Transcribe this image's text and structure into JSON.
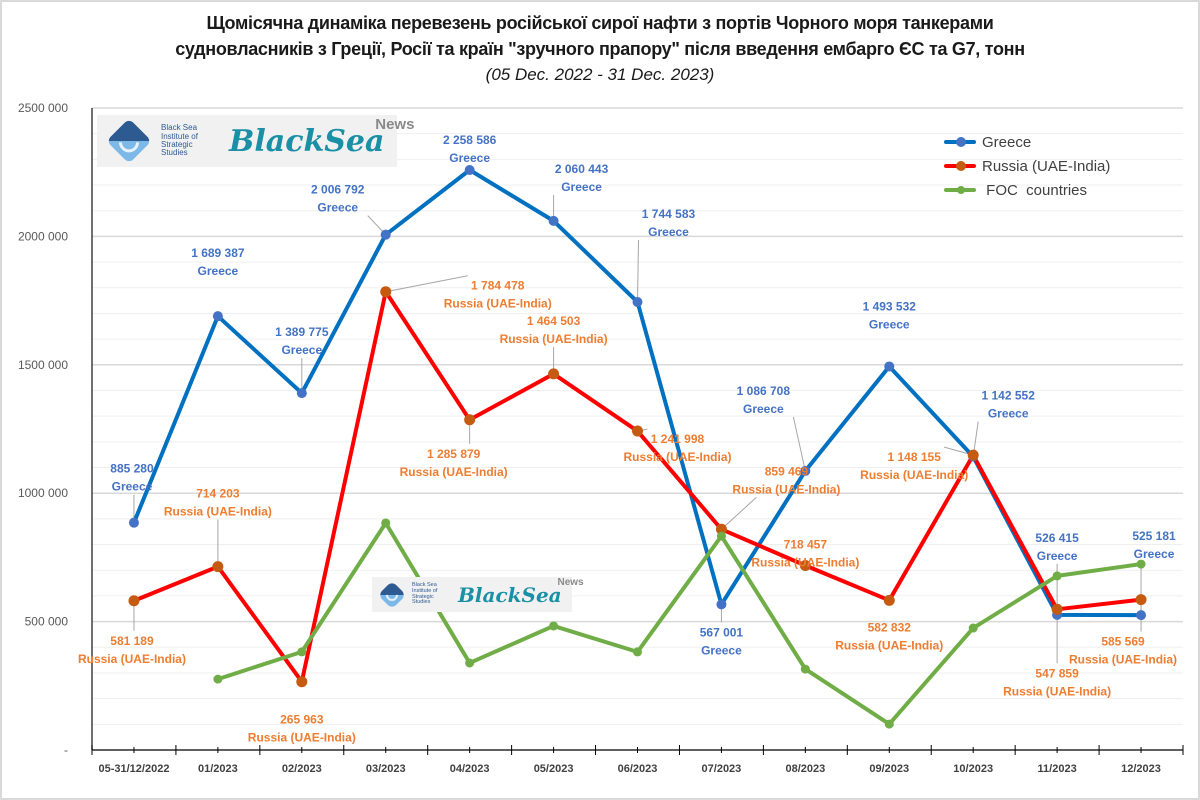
{
  "chart_data": {
    "type": "line",
    "title": "Щомісячна динаміка перевезень російської сирої нафти з портів Чорного моря танкерами судновласників з Греції, Росії та країн \"зручного прапору\" після введення ембарго ЄС та G7, тонн",
    "title_line1": "Щомісячна динаміка перевезень російської сирої нафти з портів Чорного моря танкерами",
    "title_line2": "судновласників з Греції, Росії та країн \"зручного прапору\" після введення ембарго ЄС та G7, тонн",
    "subtitle": "(05 Dec. 2022 - 31 Dec. 2023)",
    "xlabel": "",
    "ylabel": "",
    "ylim": [
      0,
      2500000
    ],
    "y_major_step": 500000,
    "y_minor_step": 100000,
    "y_tick_labels": [
      "-",
      "500 000",
      "1000 000",
      "1500 000",
      "2000 000",
      "2500 000"
    ],
    "grid": true,
    "legend_position": "top-right",
    "categories": [
      "05-31/12/2022",
      "01/2023",
      "02/2023",
      "03/2023",
      "04/2023",
      "05/2023",
      "06/2023",
      "07/2023",
      "08/2023",
      "09/2023",
      "10/2023",
      "11/2023",
      "12/2023"
    ],
    "series": [
      {
        "name": "Greece",
        "legend_label": "Greece",
        "color": "#0070c0",
        "marker_color": "#4472c4",
        "label_color": "#4472c4",
        "values": [
          885280,
          1689387,
          1389775,
          2006792,
          2258586,
          2060443,
          1744583,
          567001,
          1086708,
          1493532,
          1142552,
          526415,
          525181
        ],
        "data_labels": [
          "885 280",
          "1 689 387",
          "1 389 775",
          "2 006 792",
          "2 258 586",
          "2 060 443",
          "1 744 583",
          "567 001",
          "1 086 708",
          "1 493 532",
          "1 142 552",
          "526 415",
          "525 181"
        ],
        "label_suffix": "Greece"
      },
      {
        "name": "Russia (UAE-India)",
        "legend_label": "Russia (UAE-India)",
        "color": "#ff0000",
        "marker_color": "#c55a11",
        "label_color": "#ed7d31",
        "values": [
          581189,
          714203,
          265963,
          1784478,
          1285879,
          1464503,
          1241998,
          859469,
          718457,
          582832,
          1148155,
          547859,
          585569
        ],
        "data_labels": [
          "581 189",
          "714 203",
          "265 963",
          "1 784 478",
          "1 285 879",
          "1 464 503",
          "1 241 998",
          "859 469",
          "718 457",
          "582 832",
          "1 148 155",
          "547 859",
          "585 569"
        ],
        "label_suffix": "Russia (UAE-India)"
      },
      {
        "name": "FOC countries",
        "legend_label": " FOC  countries",
        "color": "#70ad47",
        "marker_color": "#70ad47",
        "values": [
          null,
          276000,
          382000,
          884000,
          339000,
          483000,
          382000,
          833000,
          315000,
          101000,
          475000,
          678000,
          724000
        ]
      }
    ]
  },
  "watermark": {
    "institute": "Black Sea Institute of Strategic Studies",
    "institute_lines": [
      "Black Sea",
      "Institute of",
      "Strategic",
      "Studies"
    ],
    "brand": "BlackSea",
    "brand_suffix": "News"
  }
}
